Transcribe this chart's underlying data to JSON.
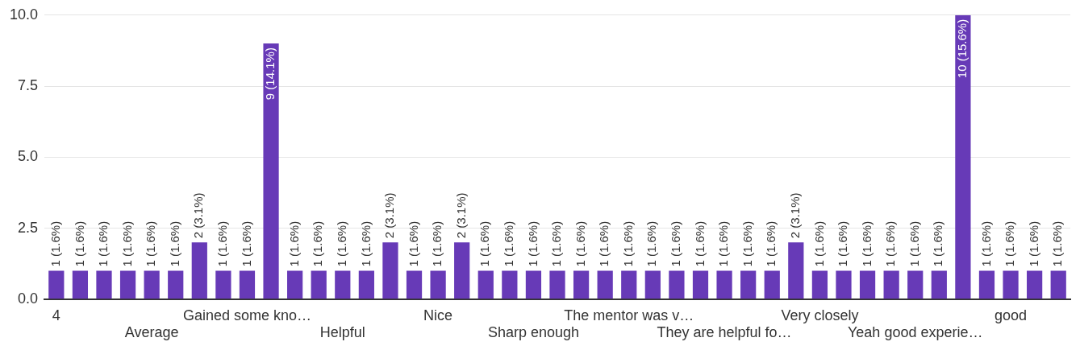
{
  "chart_data": {
    "type": "bar",
    "categories": [
      "4",
      null,
      null,
      null,
      "Average",
      null,
      null,
      null,
      "Gained some kno…",
      null,
      null,
      null,
      "Helpful",
      null,
      null,
      null,
      "Nice",
      null,
      null,
      null,
      "Sharp enough",
      null,
      null,
      null,
      "The mentor was v…",
      null,
      null,
      null,
      "They are helpful fo…",
      null,
      null,
      null,
      "Very closely",
      null,
      null,
      null,
      "Yeah good experie…",
      null,
      null,
      null,
      "good",
      null,
      null
    ],
    "values": [
      1,
      1,
      1,
      1,
      1,
      1,
      2,
      1,
      1,
      9,
      1,
      1,
      1,
      1,
      2,
      1,
      1,
      2,
      1,
      1,
      1,
      1,
      1,
      1,
      1,
      1,
      1,
      1,
      1,
      1,
      1,
      2,
      1,
      1,
      1,
      1,
      1,
      1,
      10,
      1,
      1,
      1,
      1
    ],
    "value_labels": [
      "1 (1.6%)",
      "1 (1.6%)",
      "1 (1.6%)",
      "1 (1.6%)",
      "1 (1.6%)",
      "1 (1.6%)",
      "2 (3.1%)",
      "1 (1.6%)",
      "1 (1.6%)",
      "9 (14.1%)",
      "1 (1.6%)",
      "1 (1.6%)",
      "1 (1.6%)",
      "1 (1.6%)",
      "2 (3.1%)",
      "1 (1.6%)",
      "1 (1.6%)",
      "2 (3.1%)",
      "1 (1.6%)",
      "1 (1.6%)",
      "1 (1.6%)",
      "1 (1.6%)",
      "1 (1.6%)",
      "1 (1.6%)",
      "1 (1.6%)",
      "1 (1.6%)",
      "1 (1.6%)",
      "1 (1.6%)",
      "1 (1.6%)",
      "1 (1.6%)",
      "1 (1.6%)",
      "2 (3.1%)",
      "1 (1.6%)",
      "1 (1.6%)",
      "1 (1.6%)",
      "1 (1.6%)",
      "1 (1.6%)",
      "1 (1.6%)",
      "10 (15.6%)",
      "1 (1.6%)",
      "1 (1.6%)",
      "1 (1.6%)",
      "1 (1.6%)"
    ],
    "color": "#673ab7",
    "ylim": [
      0,
      10
    ],
    "yticks": [
      {
        "value": 0,
        "label": "0.0"
      },
      {
        "value": 2.5,
        "label": "2.5"
      },
      {
        "value": 5,
        "label": "5.0"
      },
      {
        "value": 7.5,
        "label": "7.5"
      },
      {
        "value": 10,
        "label": "10.0"
      }
    ],
    "grid": "y",
    "legend": false
  }
}
